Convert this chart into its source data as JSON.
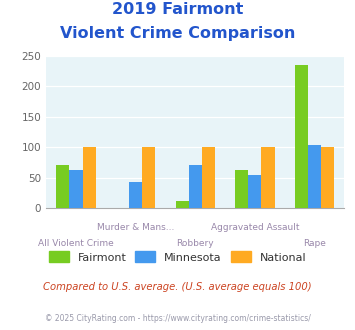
{
  "title_line1": "2019 Fairmont",
  "title_line2": "Violent Crime Comparison",
  "categories": [
    "All Violent Crime",
    "Murder & Mans...",
    "Robbery",
    "Aggravated Assault",
    "Rape"
  ],
  "fairmont": [
    70,
    0,
    12,
    62,
    235
  ],
  "minnesota": [
    63,
    42,
    70,
    54,
    103
  ],
  "national": [
    100,
    100,
    100,
    100,
    100
  ],
  "fairmont_color": "#77cc22",
  "minnesota_color": "#4499ee",
  "national_color": "#ffaa22",
  "ylim": [
    0,
    250
  ],
  "yticks": [
    0,
    50,
    100,
    150,
    200,
    250
  ],
  "bg_color": "#e8f4f8",
  "title_color": "#2255cc",
  "xlabel_color": "#9988aa",
  "legend_label_color": "#333333",
  "footer_text": "Compared to U.S. average. (U.S. average equals 100)",
  "copyright_text": "© 2025 CityRating.com - https://www.cityrating.com/crime-statistics/",
  "footer_color": "#cc4422",
  "copyright_color": "#9999aa",
  "bar_width": 0.22
}
